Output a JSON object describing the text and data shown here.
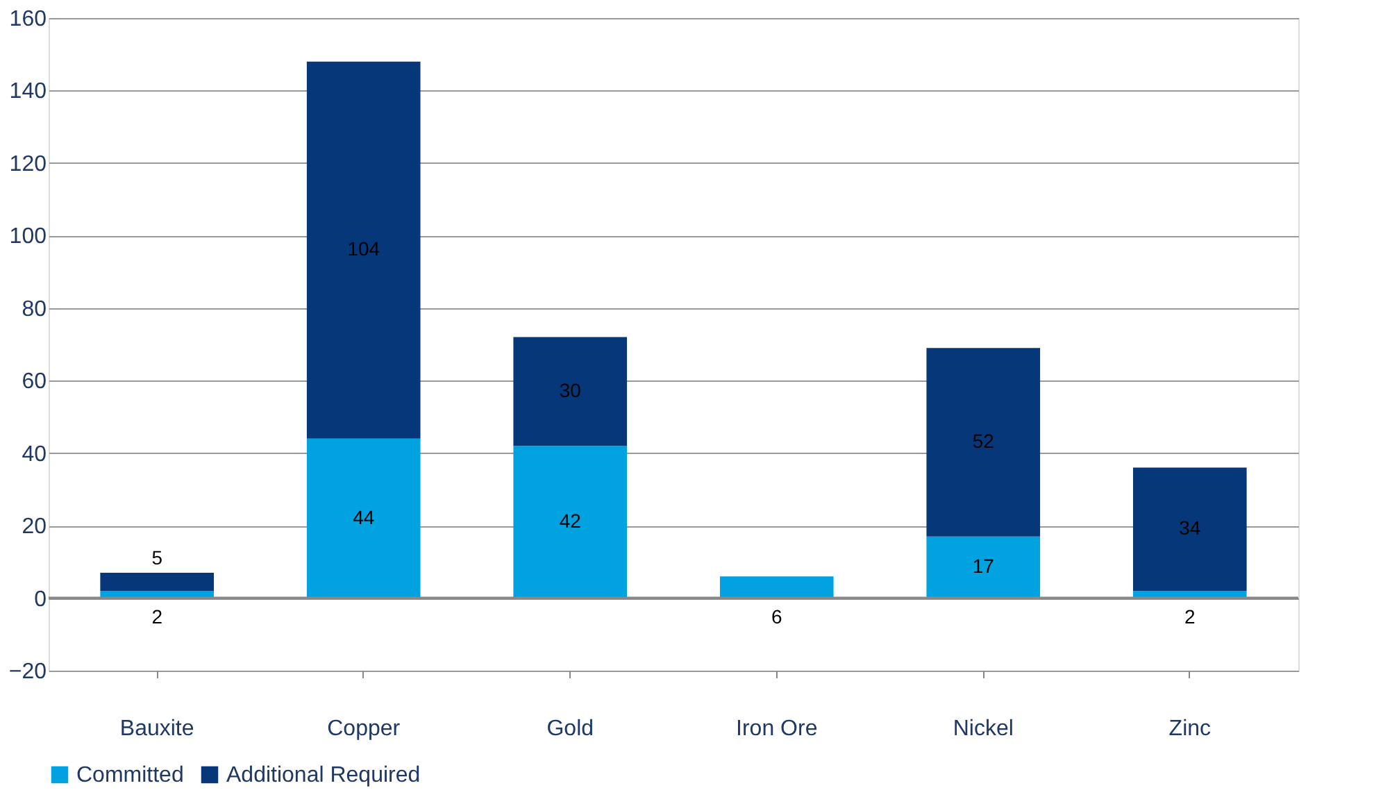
{
  "chart_data": {
    "type": "bar",
    "stacked": true,
    "categories": [
      "Bauxite",
      "Copper",
      "Gold",
      "Iron Ore",
      "Nickel",
      "Zinc"
    ],
    "series": [
      {
        "name": "Committed",
        "color": "#00a3e0",
        "values": [
          2,
          44,
          42,
          6,
          17,
          2
        ]
      },
      {
        "name": "Additional Required",
        "color": "#063778",
        "values": [
          5,
          104,
          30,
          null,
          52,
          34
        ]
      }
    ],
    "ylim": [
      -20,
      160
    ],
    "yticks": [
      -20,
      0,
      20,
      40,
      60,
      80,
      100,
      120,
      140,
      160
    ],
    "grid": "y",
    "legend": "bottom",
    "data_labels": true
  }
}
